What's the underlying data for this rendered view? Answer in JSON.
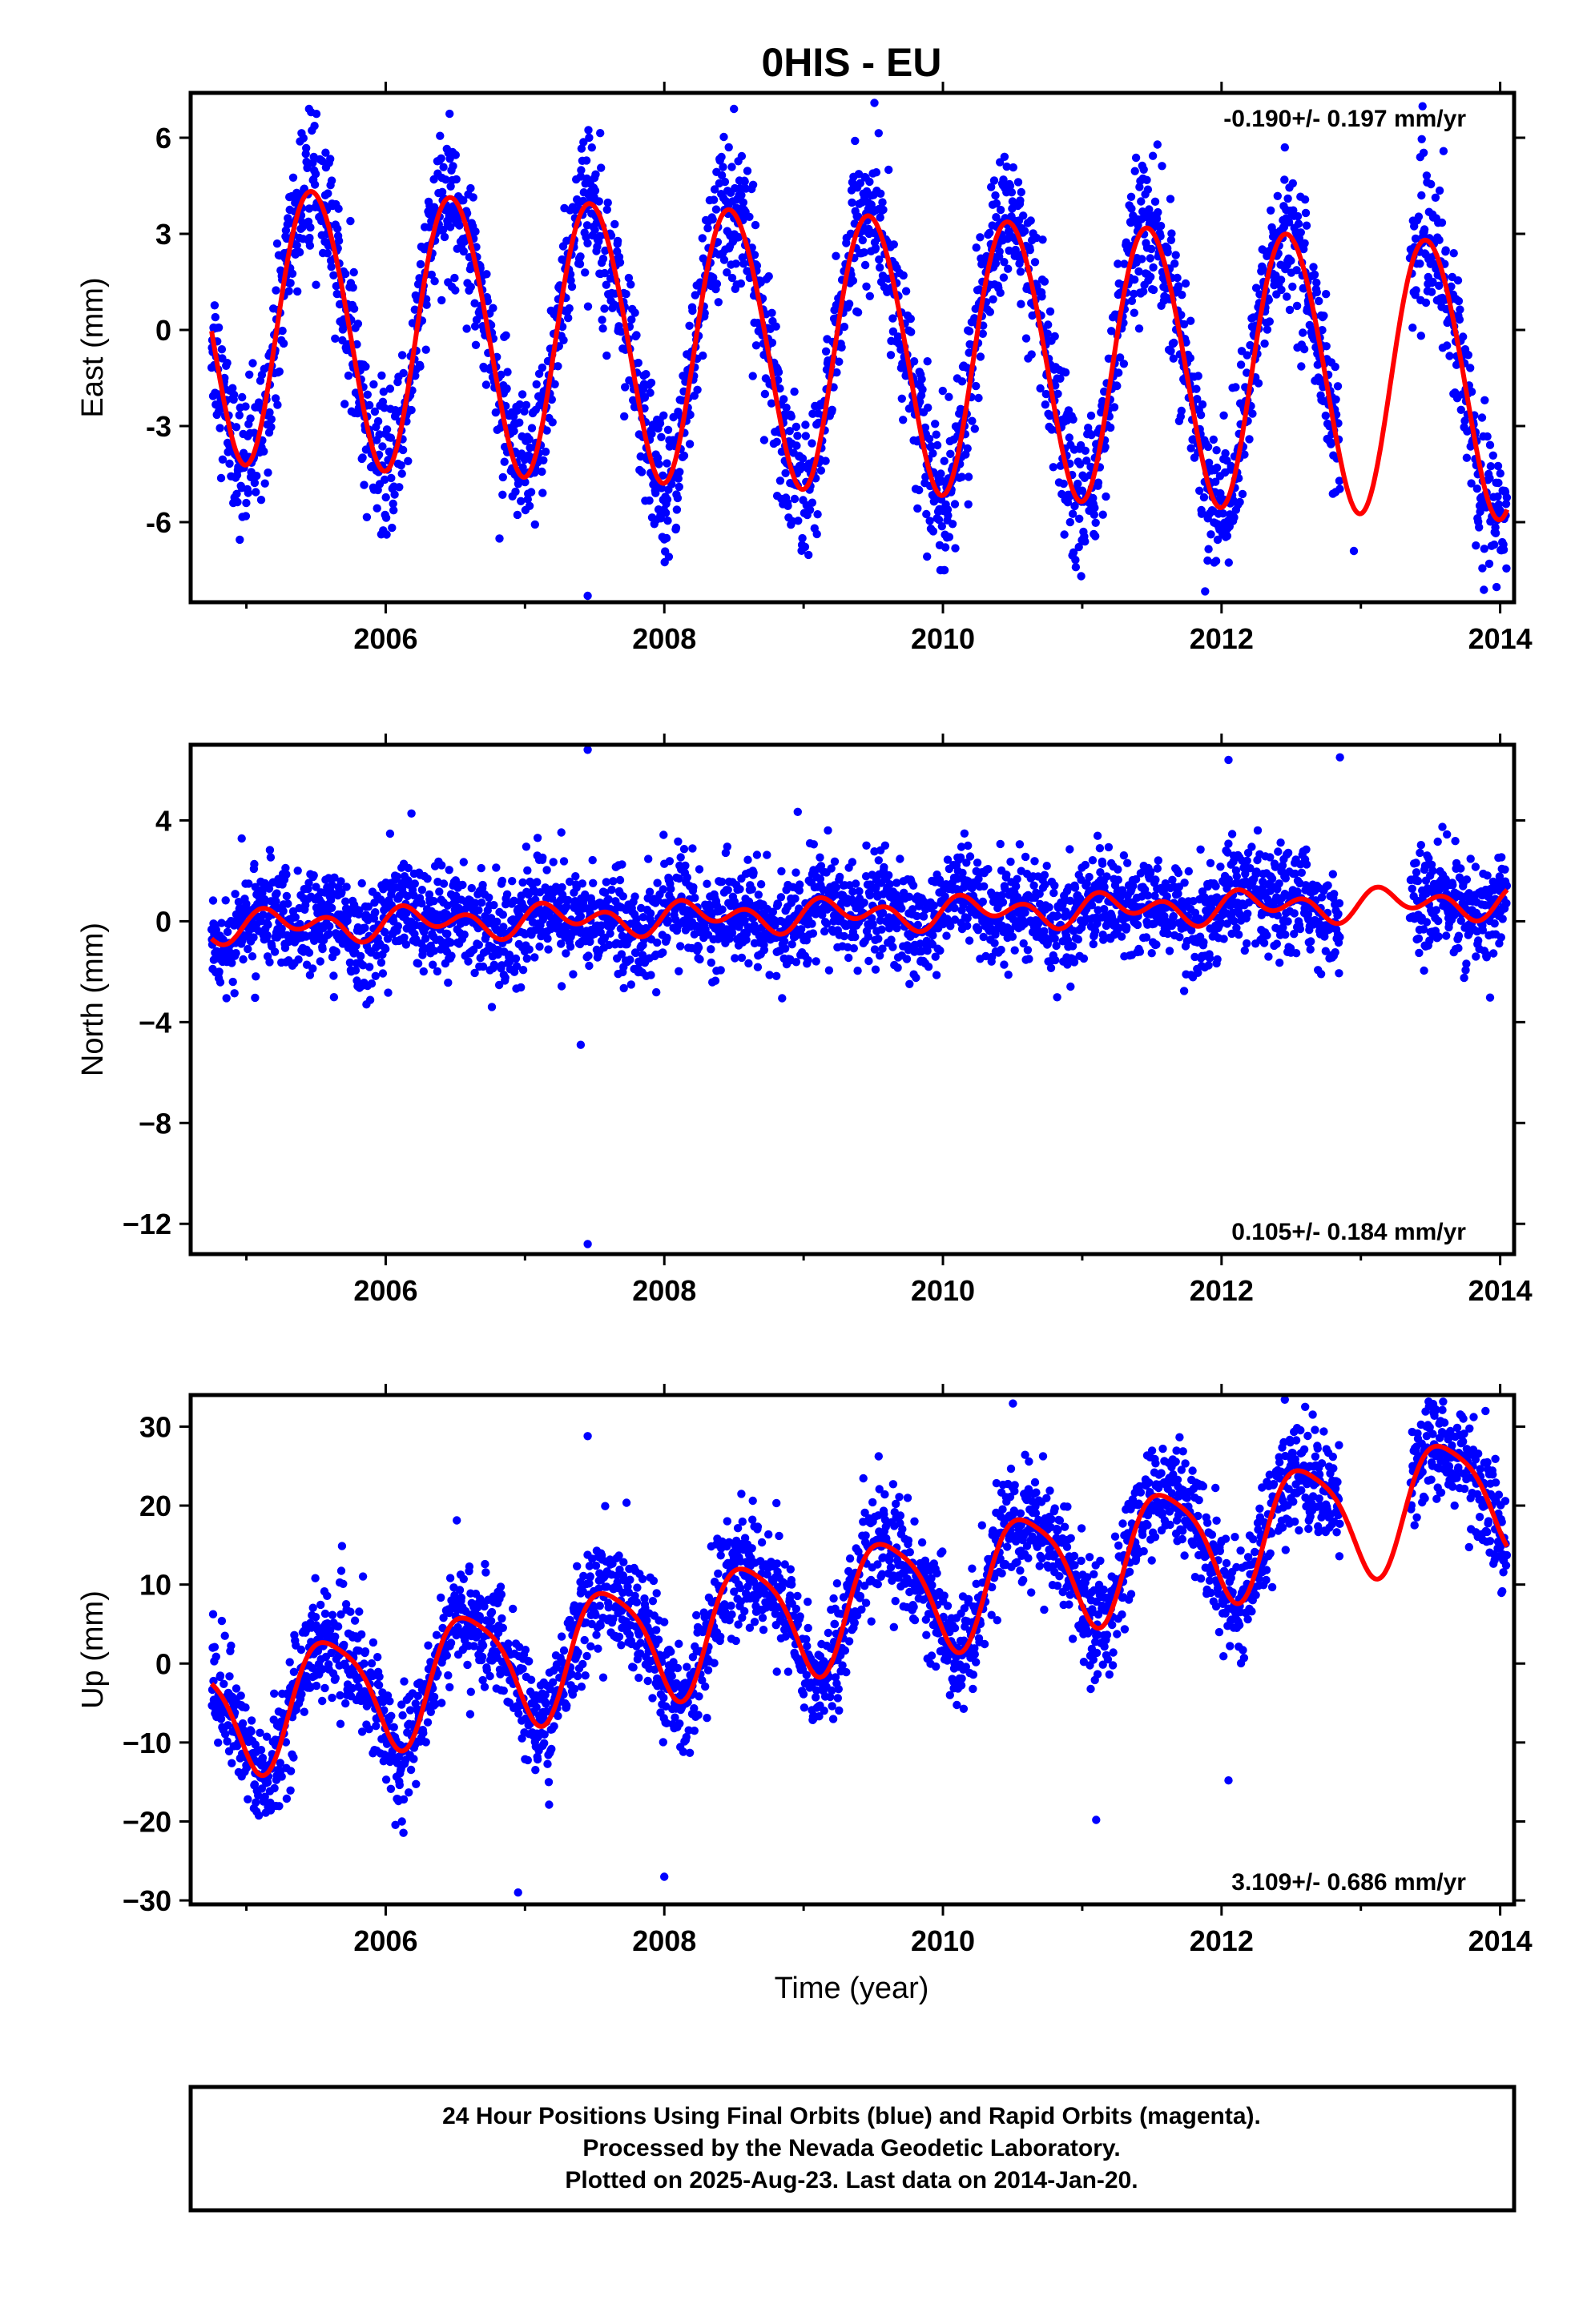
{
  "title": "0HIS - EU",
  "xlabel": "Time (year)",
  "colors": {
    "points": "#0000ff",
    "model": "#ff0000",
    "frame": "#000000"
  },
  "footer": [
    "24 Hour Positions Using Final Orbits (blue) and Rapid Orbits (magenta).",
    "Processed by the Nevada Geodetic Laboratory.",
    "Plotted on 2025-Aug-23. Last data on 2014-Jan-20."
  ],
  "chart_data": [
    {
      "type": "scatter",
      "component": "east",
      "ylabel": "East (mm)",
      "rate_label": "-0.190+/- 0.197 mm/yr",
      "xlim": [
        2004.6,
        2014.1
      ],
      "ylim": [
        -8.5,
        7.4
      ],
      "xticks": [
        2006,
        2008,
        2010,
        2012,
        2014
      ],
      "yticks": [
        {
          "v": 6,
          "t": "6"
        },
        {
          "v": 3,
          "t": "3"
        },
        {
          "v": 0,
          "t": "0"
        },
        {
          "v": -3,
          "t": "-3"
        },
        {
          "v": -6,
          "t": "-6"
        }
      ],
      "data_start": 2004.75,
      "data_end": 2014.05,
      "gaps": [
        [
          2012.85,
          2013.35
        ]
      ],
      "model": {
        "offset": 0.3,
        "trend_mm_per_yr": -0.19,
        "annual_amp": 4.3,
        "annual_phase": 2005.23,
        "semiannual_amp": 0.25,
        "semiannual_phase": 2005.3,
        "scatter_sd": 1.1
      },
      "outliers": [
        [
          2007.45,
          -8.3
        ],
        [
          2005.45,
          6.9
        ],
        [
          2008.5,
          6.9
        ],
        [
          2011.9,
          -7.2
        ],
        [
          2012.95,
          -6.9
        ]
      ]
    },
    {
      "type": "scatter",
      "component": "north",
      "ylabel": "North (mm)",
      "rate_label": "0.105+/- 0.184 mm/yr",
      "xlim": [
        2004.6,
        2014.1
      ],
      "ylim": [
        -13.2,
        7.0
      ],
      "xticks": [
        2006,
        2008,
        2010,
        2012,
        2014
      ],
      "yticks": [
        {
          "v": 4,
          "t": "4"
        },
        {
          "v": 0,
          "t": "0"
        },
        {
          "v": -4,
          "t": "−4"
        },
        {
          "v": -8,
          "t": "−8"
        },
        {
          "v": -12,
          "t": "−12"
        }
      ],
      "data_start": 2004.75,
      "data_end": 2014.05,
      "gaps": [
        [
          2012.85,
          2013.35
        ]
      ],
      "model": {
        "offset": -0.2,
        "trend_mm_per_yr": 0.105,
        "annual_amp": 0.35,
        "annual_phase": 2005.0,
        "semiannual_amp": 0.45,
        "semiannual_phase": 2005.1,
        "scatter_sd": 1.0
      },
      "outliers": [
        [
          2007.45,
          6.8
        ],
        [
          2007.45,
          -12.8
        ],
        [
          2007.4,
          -4.9
        ],
        [
          2012.85,
          6.5
        ],
        [
          2012.05,
          6.4
        ]
      ]
    },
    {
      "type": "scatter",
      "component": "up",
      "ylabel": "Up (mm)",
      "rate_label": "3.109+/- 0.686 mm/yr",
      "xlim": [
        2004.6,
        2014.1
      ],
      "ylim": [
        -30.5,
        34
      ],
      "xticks": [
        2006,
        2008,
        2010,
        2012,
        2014
      ],
      "yticks": [
        {
          "v": 30,
          "t": "30"
        },
        {
          "v": 20,
          "t": "20"
        },
        {
          "v": 10,
          "t": "10"
        },
        {
          "v": 0,
          "t": "0"
        },
        {
          "v": -10,
          "t": "−10"
        },
        {
          "v": -20,
          "t": "−20"
        },
        {
          "v": -30,
          "t": "−30"
        }
      ],
      "data_start": 2004.75,
      "data_end": 2014.05,
      "gaps": [
        [
          2012.85,
          2013.35
        ]
      ],
      "model": {
        "offset": -6.5,
        "trend_mm_per_yr": 3.109,
        "annual_amp": 7.5,
        "annual_phase": 2005.35,
        "semiannual_amp": 1.5,
        "semiannual_phase": 2005.4,
        "scatter_sd": 3.5
      },
      "outliers": [
        [
          2007.45,
          28.8
        ],
        [
          2006.95,
          -29.0
        ],
        [
          2008.0,
          -27.0
        ],
        [
          2012.6,
          32.5
        ],
        [
          2013.6,
          30.5
        ],
        [
          2011.1,
          -19.8
        ],
        [
          2012.05,
          -14.8
        ]
      ]
    }
  ]
}
